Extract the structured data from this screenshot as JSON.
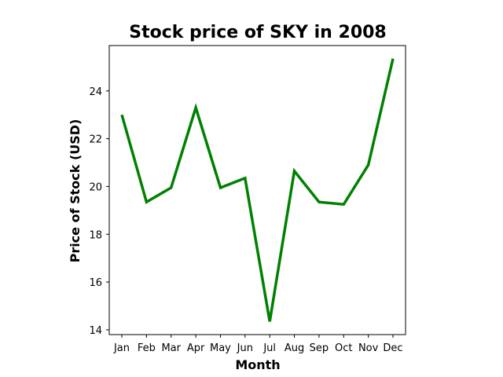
{
  "chart_data": {
    "type": "line",
    "title": "Stock price of SKY in 2008",
    "xlabel": "Month",
    "ylabel": "Price of Stock (USD)",
    "categories": [
      "Jan",
      "Feb",
      "Mar",
      "Apr",
      "May",
      "Jun",
      "Jul",
      "Aug",
      "Sep",
      "Oct",
      "Nov",
      "Dec"
    ],
    "series": [
      {
        "values": [
          23.0,
          19.35,
          19.95,
          23.3,
          19.95,
          20.35,
          14.35,
          20.65,
          19.35,
          19.25,
          20.9,
          25.35
        ]
      }
    ],
    "yticks": [
      14,
      16,
      18,
      20,
      22,
      24
    ],
    "ylim": [
      13.8,
      25.9
    ],
    "grid": false,
    "legend": "none",
    "colors": {
      "line": "#008000",
      "axes": "#000000"
    }
  }
}
